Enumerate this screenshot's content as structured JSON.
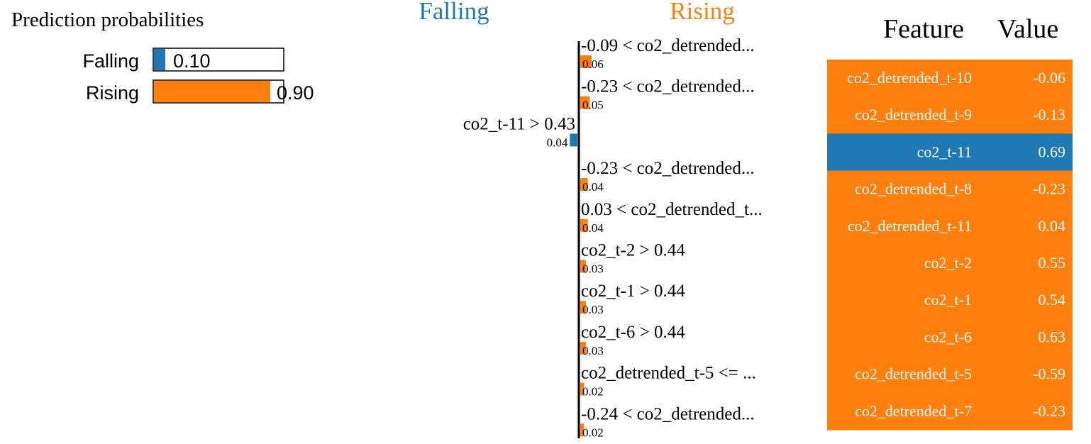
{
  "prediction_panel": {
    "title": "Prediction probabilities",
    "classes": [
      {
        "label": "Falling",
        "value": 0.1,
        "value_label": "0.10",
        "color": "#1f77b4"
      },
      {
        "label": "Rising",
        "value": 0.9,
        "value_label": "0.90",
        "color": "#ff7f0e"
      }
    ]
  },
  "explanation_panel": {
    "negative_label": "Falling",
    "positive_label": "Rising",
    "negative_color": "#1f77b4",
    "positive_color": "#ff7f0e"
  },
  "feature_table": {
    "header_feature": "Feature",
    "header_value": "Value"
  },
  "chart_data": [
    {
      "type": "bar",
      "title": "Prediction probabilities",
      "categories": [
        "Falling",
        "Rising"
      ],
      "values": [
        0.1,
        0.9
      ],
      "value_labels": [
        "0.10",
        "0.90"
      ],
      "colors": [
        "#1f77b4",
        "#ff7f0e"
      ],
      "xlim": [
        0,
        1
      ]
    },
    {
      "type": "bar",
      "title": "",
      "negative_label": "Falling",
      "positive_label": "Rising",
      "categories": [
        "-0.09 < co2_detrended...",
        "-0.23 < co2_detrended...",
        "co2_t-11 > 0.43",
        "-0.23 < co2_detrended...",
        "0.03 < co2_detrended_t...",
        "co2_t-2 > 0.44",
        "co2_t-1 > 0.44",
        "co2_t-6 > 0.44",
        "co2_detrended_t-5 <= ...",
        "-0.24 < co2_detrended..."
      ],
      "values": [
        0.06,
        0.05,
        -0.04,
        0.04,
        0.04,
        0.03,
        0.03,
        0.03,
        0.02,
        0.02
      ],
      "value_labels": [
        "0.06",
        "0.05",
        "0.04",
        "0.04",
        "0.04",
        "0.03",
        "0.03",
        "0.03",
        "0.02",
        "0.02"
      ],
      "classes": [
        "Rising",
        "Rising",
        "Falling",
        "Rising",
        "Rising",
        "Rising",
        "Rising",
        "Rising",
        "Rising",
        "Rising"
      ]
    },
    {
      "type": "table",
      "columns": [
        "Feature",
        "Value"
      ],
      "rows": [
        {
          "feature": "co2_detrended_t-10",
          "value": "-0.06",
          "class": "Rising"
        },
        {
          "feature": "co2_detrended_t-9",
          "value": "-0.13",
          "class": "Rising"
        },
        {
          "feature": "co2_t-11",
          "value": "0.69",
          "class": "Falling"
        },
        {
          "feature": "co2_detrended_t-8",
          "value": "-0.23",
          "class": "Rising"
        },
        {
          "feature": "co2_detrended_t-11",
          "value": "0.04",
          "class": "Rising"
        },
        {
          "feature": "co2_t-2",
          "value": "0.55",
          "class": "Rising"
        },
        {
          "feature": "co2_t-1",
          "value": "0.54",
          "class": "Rising"
        },
        {
          "feature": "co2_t-6",
          "value": "0.63",
          "class": "Rising"
        },
        {
          "feature": "co2_detrended_t-5",
          "value": "-0.59",
          "class": "Rising"
        },
        {
          "feature": "co2_detrended_t-7",
          "value": "-0.23",
          "class": "Rising"
        }
      ]
    }
  ]
}
